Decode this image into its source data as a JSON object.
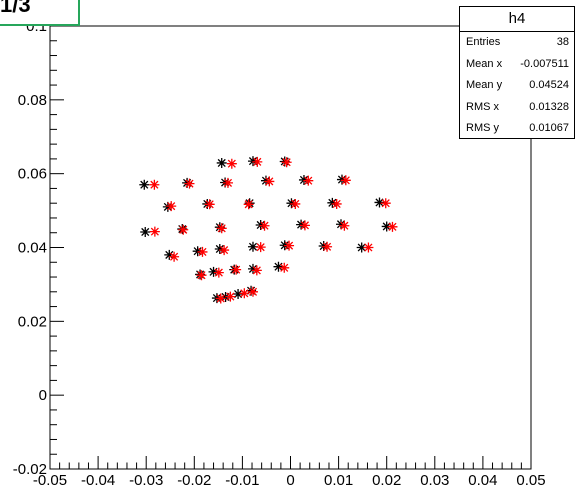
{
  "corner_label": "1/3",
  "stats_box": {
    "title": "h4",
    "rows": [
      {
        "label": "Entries",
        "value": "38"
      },
      {
        "label": "Mean x",
        "value": "-0.007511"
      },
      {
        "label": "Mean y",
        "value": "0.04524"
      },
      {
        "label": "RMS x",
        "value": "0.01328"
      },
      {
        "label": "RMS y",
        "value": "0.01067"
      }
    ]
  },
  "chart_data": {
    "type": "scatter",
    "title": "",
    "xlabel": "",
    "ylabel": "",
    "xlim": [
      -0.05,
      0.05
    ],
    "ylim": [
      -0.02,
      0.1
    ],
    "x_ticks": [
      -0.05,
      -0.04,
      -0.03,
      -0.02,
      -0.01,
      0,
      0.01,
      0.02,
      0.03,
      0.04,
      0.05
    ],
    "x_tick_labels": [
      "-0.05",
      "-0.04",
      "-0.03",
      "-0.02",
      "-0.01",
      "0",
      "0.01",
      "0.02",
      "0.03",
      "0.04",
      "0.05"
    ],
    "y_ticks": [
      -0.02,
      0,
      0.02,
      0.04,
      0.06,
      0.08,
      0.1
    ],
    "y_tick_labels": [
      "-0.02",
      "0",
      "0.02",
      "0.04",
      "0.06",
      "0.08",
      "0.1"
    ],
    "grid": false,
    "marker": "star",
    "series": [
      {
        "color": "#000000",
        "points": [
          [
            -0.0143,
            0.0629
          ],
          [
            -0.0078,
            0.0634
          ],
          [
            -0.0012,
            0.0633
          ],
          [
            -0.0304,
            0.057
          ],
          [
            -0.0215,
            0.0575
          ],
          [
            -0.0136,
            0.0576
          ],
          [
            -0.0051,
            0.0581
          ],
          [
            0.0028,
            0.0583
          ],
          [
            0.0107,
            0.0584
          ],
          [
            -0.0255,
            0.051
          ],
          [
            -0.0173,
            0.0518
          ],
          [
            -0.0085,
            0.052
          ],
          [
            0.0002,
            0.052
          ],
          [
            0.0087,
            0.0521
          ],
          [
            0.0185,
            0.0522
          ],
          [
            -0.0302,
            0.0442
          ],
          [
            -0.0225,
            0.045
          ],
          [
            -0.0147,
            0.0455
          ],
          [
            -0.0062,
            0.0461
          ],
          [
            0.0022,
            0.0462
          ],
          [
            0.0105,
            0.0463
          ],
          [
            0.02,
            0.0457
          ],
          [
            -0.0252,
            0.038
          ],
          [
            -0.0193,
            0.039
          ],
          [
            -0.0147,
            0.0396
          ],
          [
            -0.0078,
            0.0402
          ],
          [
            -0.0012,
            0.0406
          ],
          [
            0.0069,
            0.0404
          ],
          [
            0.0148,
            0.04
          ],
          [
            -0.0188,
            0.0327
          ],
          [
            -0.016,
            0.0334
          ],
          [
            -0.0117,
            0.034
          ],
          [
            -0.0078,
            0.0342
          ],
          [
            -0.0025,
            0.0348
          ],
          [
            -0.0153,
            0.0263
          ],
          [
            -0.0135,
            0.0266
          ],
          [
            -0.0109,
            0.0274
          ],
          [
            -0.0082,
            0.0283
          ]
        ]
      },
      {
        "color": "#ff0000",
        "points": [
          [
            -0.0122,
            0.0627
          ],
          [
            -0.0069,
            0.0632
          ],
          [
            -0.0008,
            0.0631
          ],
          [
            -0.0283,
            0.057
          ],
          [
            -0.021,
            0.0573
          ],
          [
            -0.013,
            0.0575
          ],
          [
            -0.0044,
            0.0579
          ],
          [
            0.0037,
            0.0581
          ],
          [
            0.0115,
            0.0582
          ],
          [
            -0.0248,
            0.0512
          ],
          [
            -0.0168,
            0.0517
          ],
          [
            -0.0087,
            0.0517
          ],
          [
            0.001,
            0.0518
          ],
          [
            0.0096,
            0.0518
          ],
          [
            0.0198,
            0.052
          ],
          [
            -0.0282,
            0.0443
          ],
          [
            -0.0223,
            0.0448
          ],
          [
            -0.0143,
            0.0452
          ],
          [
            -0.0054,
            0.0459
          ],
          [
            0.003,
            0.046
          ],
          [
            0.0112,
            0.0459
          ],
          [
            0.0212,
            0.0456
          ],
          [
            -0.0242,
            0.0375
          ],
          [
            -0.0183,
            0.0388
          ],
          [
            -0.0138,
            0.0393
          ],
          [
            -0.0062,
            0.0401
          ],
          [
            -0.0003,
            0.0405
          ],
          [
            0.0076,
            0.0402
          ],
          [
            0.0162,
            0.04
          ],
          [
            -0.0185,
            0.0325
          ],
          [
            -0.0149,
            0.0332
          ],
          [
            -0.0113,
            0.034
          ],
          [
            -0.007,
            0.0338
          ],
          [
            -0.0013,
            0.0345
          ],
          [
            -0.0145,
            0.0262
          ],
          [
            -0.0125,
            0.0267
          ],
          [
            -0.0096,
            0.0276
          ],
          [
            -0.0078,
            0.028
          ]
        ]
      }
    ]
  }
}
